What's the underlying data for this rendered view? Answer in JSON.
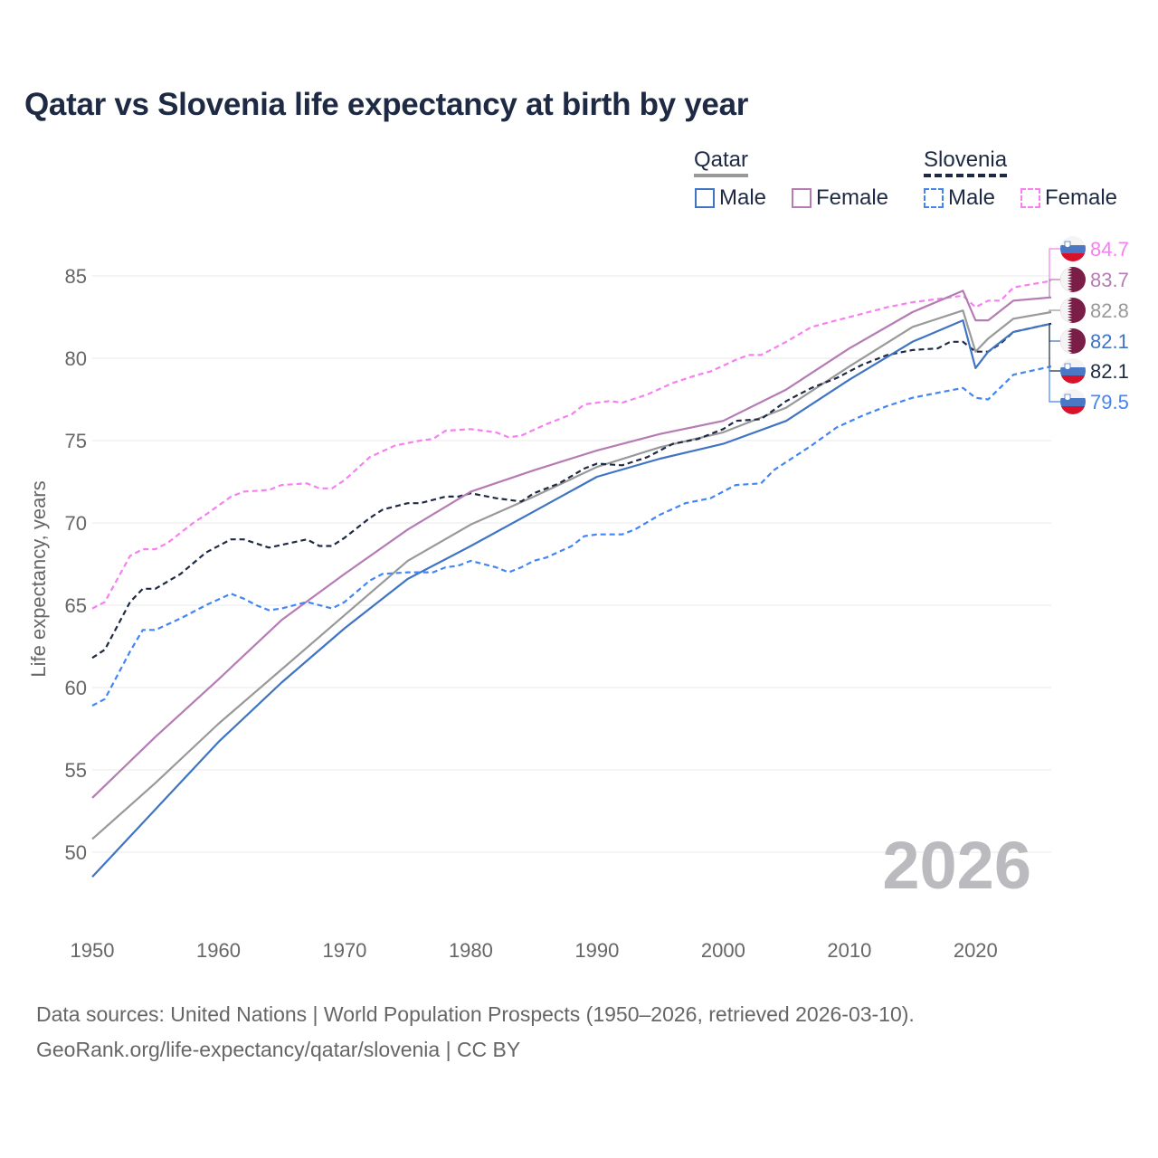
{
  "chart_data": {
    "type": "line",
    "title": "Qatar vs Slovenia life expectancy at birth by year",
    "xlabel": "",
    "ylabel": "Life expectancy, years",
    "xlim": [
      1950,
      2026
    ],
    "ylim": [
      45.6,
      87
    ],
    "x_ticks": [
      "1950",
      "1960",
      "1970",
      "1980",
      "1990",
      "2000",
      "2010",
      "2020"
    ],
    "y_ticks": [
      "50",
      "55",
      "60",
      "65",
      "70",
      "75",
      "80",
      "85"
    ],
    "grid": true,
    "legend_position": "top-right",
    "legend": {
      "groups": [
        {
          "name": "Qatar",
          "items": [
            "Male",
            "Female"
          ]
        },
        {
          "name": "Slovenia",
          "items": [
            "Male",
            "Female"
          ]
        }
      ]
    },
    "year_watermark": "2026",
    "series": [
      {
        "name": "Slovenia Female",
        "color": "#f77ff0",
        "dash": true,
        "end_label": "84.7",
        "flag": "slovenia",
        "points": [
          [
            1950,
            64.8
          ],
          [
            1951,
            65.2
          ],
          [
            1953,
            68.0
          ],
          [
            1954,
            68.4
          ],
          [
            1955,
            68.4
          ],
          [
            1956,
            68.8
          ],
          [
            1958,
            70.0
          ],
          [
            1959,
            70.5
          ],
          [
            1961,
            71.6
          ],
          [
            1962,
            71.9
          ],
          [
            1964,
            72.0
          ],
          [
            1965,
            72.3
          ],
          [
            1967,
            72.4
          ],
          [
            1968,
            72.1
          ],
          [
            1969,
            72.1
          ],
          [
            1970,
            72.6
          ],
          [
            1972,
            74.0
          ],
          [
            1974,
            74.7
          ],
          [
            1976,
            75.0
          ],
          [
            1977,
            75.1
          ],
          [
            1978,
            75.6
          ],
          [
            1980,
            75.7
          ],
          [
            1982,
            75.5
          ],
          [
            1983,
            75.2
          ],
          [
            1984,
            75.3
          ],
          [
            1986,
            76.0
          ],
          [
            1988,
            76.6
          ],
          [
            1989,
            77.2
          ],
          [
            1991,
            77.4
          ],
          [
            1992,
            77.3
          ],
          [
            1994,
            77.8
          ],
          [
            1996,
            78.5
          ],
          [
            1998,
            79.0
          ],
          [
            1999,
            79.2
          ],
          [
            2001,
            79.9
          ],
          [
            2002,
            80.2
          ],
          [
            2003,
            80.2
          ],
          [
            2004,
            80.6
          ],
          [
            2005,
            81.0
          ],
          [
            2007,
            81.9
          ],
          [
            2009,
            82.3
          ],
          [
            2011,
            82.7
          ],
          [
            2013,
            83.1
          ],
          [
            2015,
            83.4
          ],
          [
            2017,
            83.6
          ],
          [
            2019,
            83.8
          ],
          [
            2020,
            83.1
          ],
          [
            2021,
            83.5
          ],
          [
            2022,
            83.5
          ],
          [
            2023,
            84.3
          ],
          [
            2026,
            84.7
          ]
        ]
      },
      {
        "name": "Qatar Female",
        "color": "#b57cb4",
        "dash": false,
        "end_label": "83.7",
        "flag": "qatar",
        "points": [
          [
            1950,
            53.3
          ],
          [
            1955,
            57.0
          ],
          [
            1960,
            60.5
          ],
          [
            1965,
            64.1
          ],
          [
            1970,
            66.9
          ],
          [
            1975,
            69.6
          ],
          [
            1980,
            71.9
          ],
          [
            1985,
            73.2
          ],
          [
            1990,
            74.4
          ],
          [
            1995,
            75.4
          ],
          [
            2000,
            76.2
          ],
          [
            2005,
            78.1
          ],
          [
            2010,
            80.6
          ],
          [
            2015,
            82.8
          ],
          [
            2019,
            84.1
          ],
          [
            2020,
            82.3
          ],
          [
            2021,
            82.3
          ],
          [
            2023,
            83.5
          ],
          [
            2026,
            83.7
          ]
        ]
      },
      {
        "name": "Qatar",
        "color": "#999999",
        "dash": false,
        "end_label": "82.8",
        "flag": "qatar",
        "points": [
          [
            1950,
            50.8
          ],
          [
            1955,
            54.2
          ],
          [
            1960,
            57.8
          ],
          [
            1965,
            61.1
          ],
          [
            1970,
            64.4
          ],
          [
            1975,
            67.7
          ],
          [
            1980,
            69.9
          ],
          [
            1985,
            71.6
          ],
          [
            1990,
            73.4
          ],
          [
            1995,
            74.6
          ],
          [
            2000,
            75.5
          ],
          [
            2005,
            77.0
          ],
          [
            2010,
            79.5
          ],
          [
            2015,
            81.9
          ],
          [
            2019,
            82.9
          ],
          [
            2020,
            80.4
          ],
          [
            2021,
            81.2
          ],
          [
            2023,
            82.4
          ],
          [
            2026,
            82.8
          ]
        ]
      },
      {
        "name": "Qatar Male",
        "color": "#3f74c4",
        "dash": false,
        "end_label": "82.1",
        "flag": "qatar",
        "points": [
          [
            1950,
            48.5
          ],
          [
            1955,
            52.6
          ],
          [
            1960,
            56.7
          ],
          [
            1965,
            60.3
          ],
          [
            1970,
            63.6
          ],
          [
            1975,
            66.6
          ],
          [
            1980,
            68.6
          ],
          [
            1985,
            70.7
          ],
          [
            1990,
            72.8
          ],
          [
            1995,
            73.9
          ],
          [
            2000,
            74.8
          ],
          [
            2005,
            76.2
          ],
          [
            2010,
            78.7
          ],
          [
            2015,
            81.0
          ],
          [
            2019,
            82.3
          ],
          [
            2020,
            79.4
          ],
          [
            2021,
            80.4
          ],
          [
            2023,
            81.6
          ],
          [
            2026,
            82.1
          ]
        ]
      },
      {
        "name": "Slovenia",
        "color": "#1e2a44",
        "dash": true,
        "end_label": "82.1",
        "flag": "slovenia",
        "points": [
          [
            1950,
            61.8
          ],
          [
            1951,
            62.3
          ],
          [
            1953,
            65.2
          ],
          [
            1954,
            66.0
          ],
          [
            1955,
            66.0
          ],
          [
            1957,
            66.9
          ],
          [
            1959,
            68.2
          ],
          [
            1961,
            69.0
          ],
          [
            1962,
            69.0
          ],
          [
            1964,
            68.5
          ],
          [
            1967,
            69.0
          ],
          [
            1968,
            68.6
          ],
          [
            1969,
            68.6
          ],
          [
            1970,
            69.1
          ],
          [
            1972,
            70.3
          ],
          [
            1973,
            70.8
          ],
          [
            1975,
            71.2
          ],
          [
            1976,
            71.2
          ],
          [
            1978,
            71.6
          ],
          [
            1979,
            71.6
          ],
          [
            1980,
            71.8
          ],
          [
            1982,
            71.5
          ],
          [
            1984,
            71.3
          ],
          [
            1985,
            71.8
          ],
          [
            1987,
            72.4
          ],
          [
            1989,
            73.3
          ],
          [
            1990,
            73.6
          ],
          [
            1992,
            73.5
          ],
          [
            1994,
            74.0
          ],
          [
            1996,
            74.8
          ],
          [
            1998,
            75.1
          ],
          [
            2000,
            75.7
          ],
          [
            2001,
            76.2
          ],
          [
            2003,
            76.3
          ],
          [
            2005,
            77.4
          ],
          [
            2007,
            78.2
          ],
          [
            2009,
            78.8
          ],
          [
            2011,
            79.6
          ],
          [
            2013,
            80.2
          ],
          [
            2015,
            80.5
          ],
          [
            2017,
            80.6
          ],
          [
            2018,
            81.0
          ],
          [
            2019,
            81.0
          ],
          [
            2020,
            80.4
          ],
          [
            2021,
            80.4
          ],
          [
            2022,
            80.9
          ],
          [
            2023,
            81.6
          ],
          [
            2026,
            82.1
          ]
        ]
      },
      {
        "name": "Slovenia Male",
        "color": "#4285f4",
        "dash": true,
        "end_label": "79.5",
        "flag": "slovenia",
        "points": [
          [
            1950,
            58.9
          ],
          [
            1951,
            59.3
          ],
          [
            1953,
            62.2
          ],
          [
            1954,
            63.5
          ],
          [
            1955,
            63.5
          ],
          [
            1957,
            64.2
          ],
          [
            1959,
            65.0
          ],
          [
            1961,
            65.7
          ],
          [
            1962,
            65.4
          ],
          [
            1963,
            65.0
          ],
          [
            1964,
            64.7
          ],
          [
            1965,
            64.8
          ],
          [
            1967,
            65.2
          ],
          [
            1969,
            64.8
          ],
          [
            1970,
            65.2
          ],
          [
            1972,
            66.5
          ],
          [
            1973,
            66.9
          ],
          [
            1975,
            67.0
          ],
          [
            1977,
            67.0
          ],
          [
            1978,
            67.3
          ],
          [
            1979,
            67.4
          ],
          [
            1980,
            67.7
          ],
          [
            1982,
            67.3
          ],
          [
            1983,
            67.0
          ],
          [
            1984,
            67.3
          ],
          [
            1985,
            67.7
          ],
          [
            1986,
            67.9
          ],
          [
            1988,
            68.6
          ],
          [
            1989,
            69.2
          ],
          [
            1990,
            69.3
          ],
          [
            1992,
            69.3
          ],
          [
            1993,
            69.6
          ],
          [
            1995,
            70.5
          ],
          [
            1997,
            71.2
          ],
          [
            1999,
            71.5
          ],
          [
            2001,
            72.3
          ],
          [
            2003,
            72.4
          ],
          [
            2004,
            73.2
          ],
          [
            2005,
            73.7
          ],
          [
            2007,
            74.7
          ],
          [
            2009,
            75.8
          ],
          [
            2011,
            76.5
          ],
          [
            2012,
            76.8
          ],
          [
            2013,
            77.1
          ],
          [
            2015,
            77.6
          ],
          [
            2017,
            77.9
          ],
          [
            2019,
            78.2
          ],
          [
            2020,
            77.6
          ],
          [
            2021,
            77.5
          ],
          [
            2023,
            79.0
          ],
          [
            2026,
            79.5
          ]
        ]
      }
    ]
  },
  "legend": {
    "qatar": "Qatar",
    "slovenia": "Slovenia",
    "male": "Male",
    "female": "Female",
    "colors": {
      "qatar_male": "#3f74c4",
      "qatar_female": "#b57cb4",
      "slovenia_male": "#4285f4",
      "slovenia_female": "#f77ff0",
      "qatar_total": "#999999",
      "slovenia_total": "#1e2a44"
    }
  },
  "footer": {
    "line1": "Data sources: United Nations | World Population Prospects (1950–2026, retrieved 2026-03-10).",
    "line2": "GeoRank.org/life-expectancy/qatar/slovenia | CC BY"
  }
}
